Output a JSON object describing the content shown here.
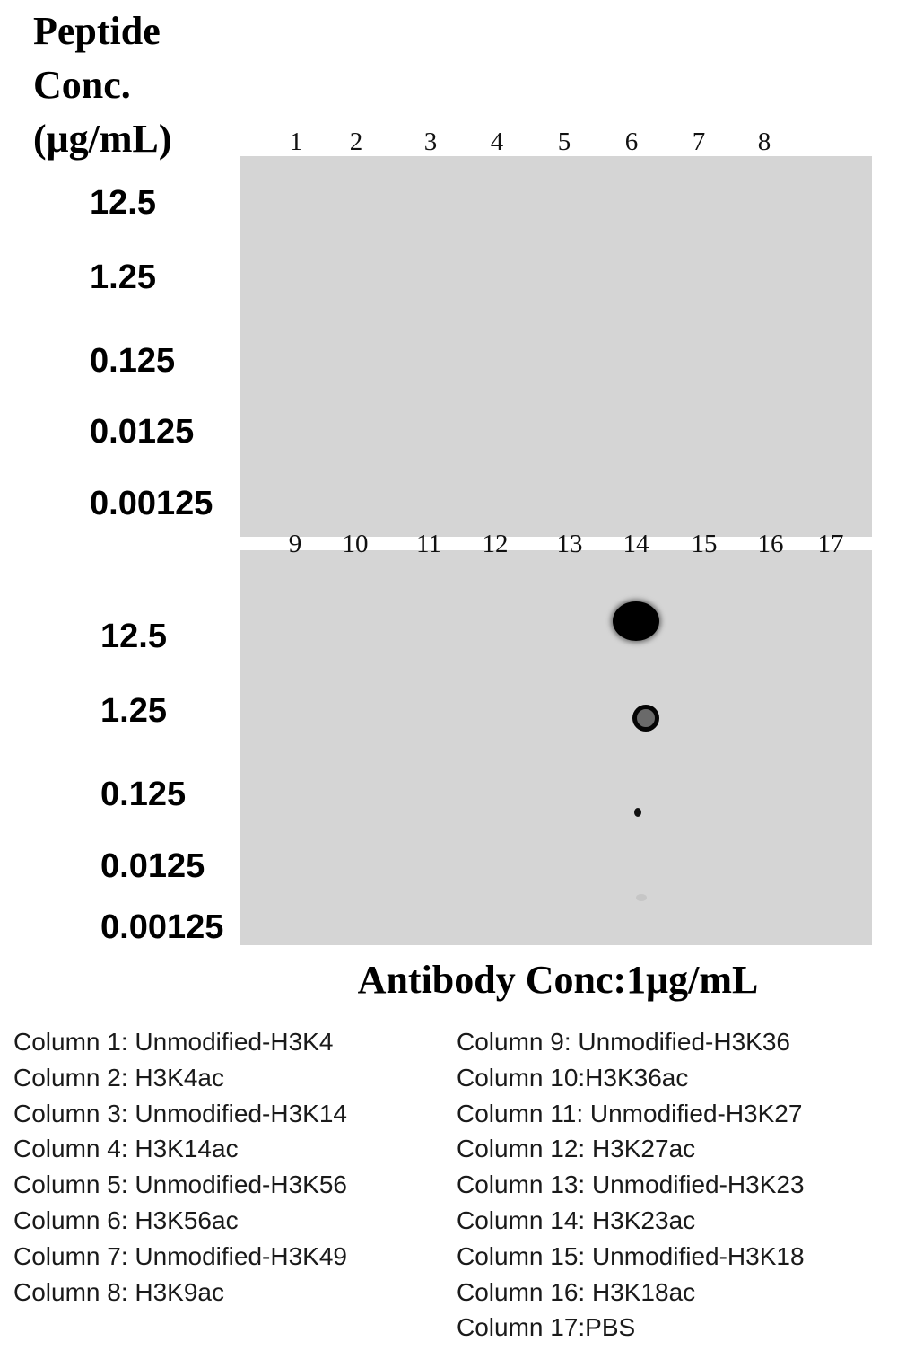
{
  "y_title": [
    "Peptide",
    "Conc.",
    "(μg/mL)"
  ],
  "x_title": "Antibody Conc:1μg/mL",
  "membrane_color": "#d5d5d5",
  "top_panel": {
    "columns": [
      "1",
      "2",
      "3",
      "4",
      "5",
      "6",
      "7",
      "8"
    ],
    "rows": [
      "12.5",
      "1.25",
      "0.125",
      "0.0125",
      "0.00125"
    ]
  },
  "bottom_panel": {
    "columns": [
      "9",
      "10",
      "11",
      "12",
      "13",
      "14",
      "15",
      "16",
      "17"
    ],
    "rows": [
      "12.5",
      "1.25",
      "0.125",
      "0.0125",
      "0.00125"
    ],
    "spots": [
      {
        "column": "14",
        "concentration": "12.5",
        "signal": "strong"
      },
      {
        "column": "14",
        "concentration": "1.25",
        "signal": "medium"
      },
      {
        "column": "14",
        "concentration": "0.125",
        "signal": "weak"
      },
      {
        "column": "14",
        "concentration": "0.00125",
        "signal": "trace"
      }
    ]
  },
  "legend_left": [
    "Column 1: Unmodified-H3K4",
    "Column 2: H3K4ac",
    "Column 3: Unmodified-H3K14",
    "Column 4: H3K14ac",
    "Column 5: Unmodified-H3K56",
    "Column 6: H3K56ac",
    "Column 7: Unmodified-H3K49",
    "Column 8: H3K9ac"
  ],
  "legend_right": [
    "Column 9: Unmodified-H3K36",
    "Column 10:H3K36ac",
    "Column 11: Unmodified-H3K27",
    "Column 12: H3K27ac",
    "Column 13: Unmodified-H3K23",
    "Column 14: H3K23ac",
    "Column 15: Unmodified-H3K18",
    "Column 16: H3K18ac",
    "Column 17:PBS"
  ]
}
